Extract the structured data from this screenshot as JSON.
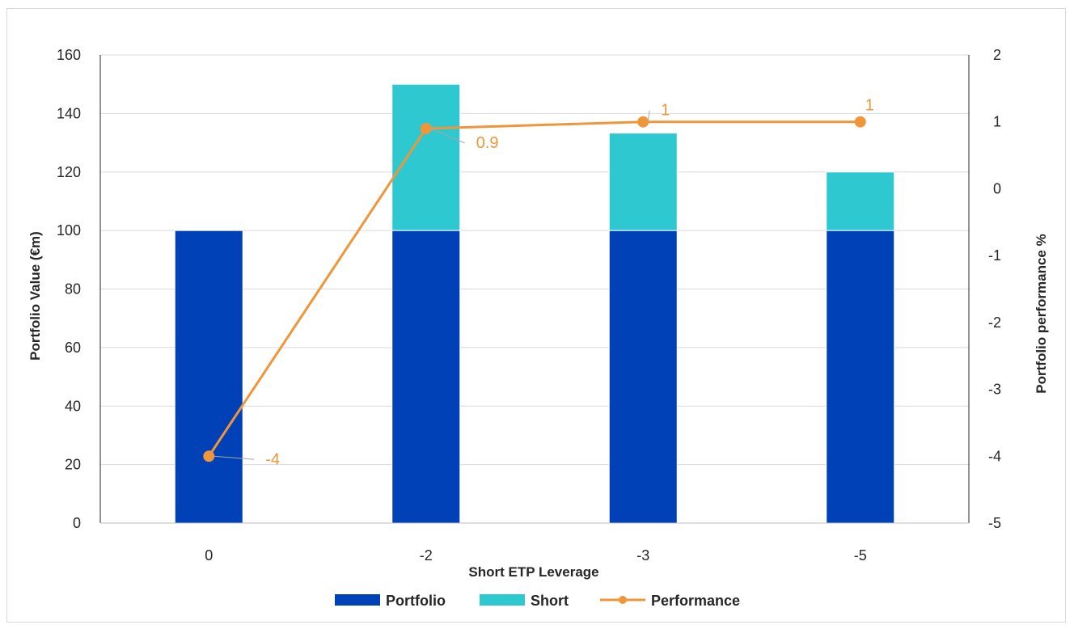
{
  "chart_data": {
    "type": "bar",
    "stacked": true,
    "title": "",
    "categories": [
      "0",
      "-2",
      "-3",
      "-5"
    ],
    "xlabel": "Short ETP Leverage",
    "ylabel": "Portfolio Value (€m)",
    "y2label": "Portfolio performance %",
    "ylim": [
      0,
      160
    ],
    "yticks": [
      "0",
      "20",
      "40",
      "60",
      "80",
      "100",
      "120",
      "140",
      "160"
    ],
    "y2lim": [
      -5,
      2
    ],
    "y2ticks": [
      "-5",
      "-4",
      "-3",
      "-2",
      "-1",
      "0",
      "1",
      "2"
    ],
    "grid": true,
    "legend_position": "bottom",
    "series": [
      {
        "name": "Portfolio",
        "type": "bar",
        "axis": "left",
        "color": "#0041b8",
        "values": [
          100,
          100,
          100,
          100
        ]
      },
      {
        "name": "Short",
        "type": "bar",
        "axis": "left",
        "color": "#2ec8d0",
        "values": [
          0,
          50,
          33.3,
          20
        ]
      },
      {
        "name": "Performance",
        "type": "line",
        "axis": "right",
        "color": "#f0963a",
        "values": [
          -4,
          0.9,
          1,
          1
        ],
        "labels": [
          "-4",
          "0.9",
          "1",
          "1"
        ]
      }
    ]
  }
}
